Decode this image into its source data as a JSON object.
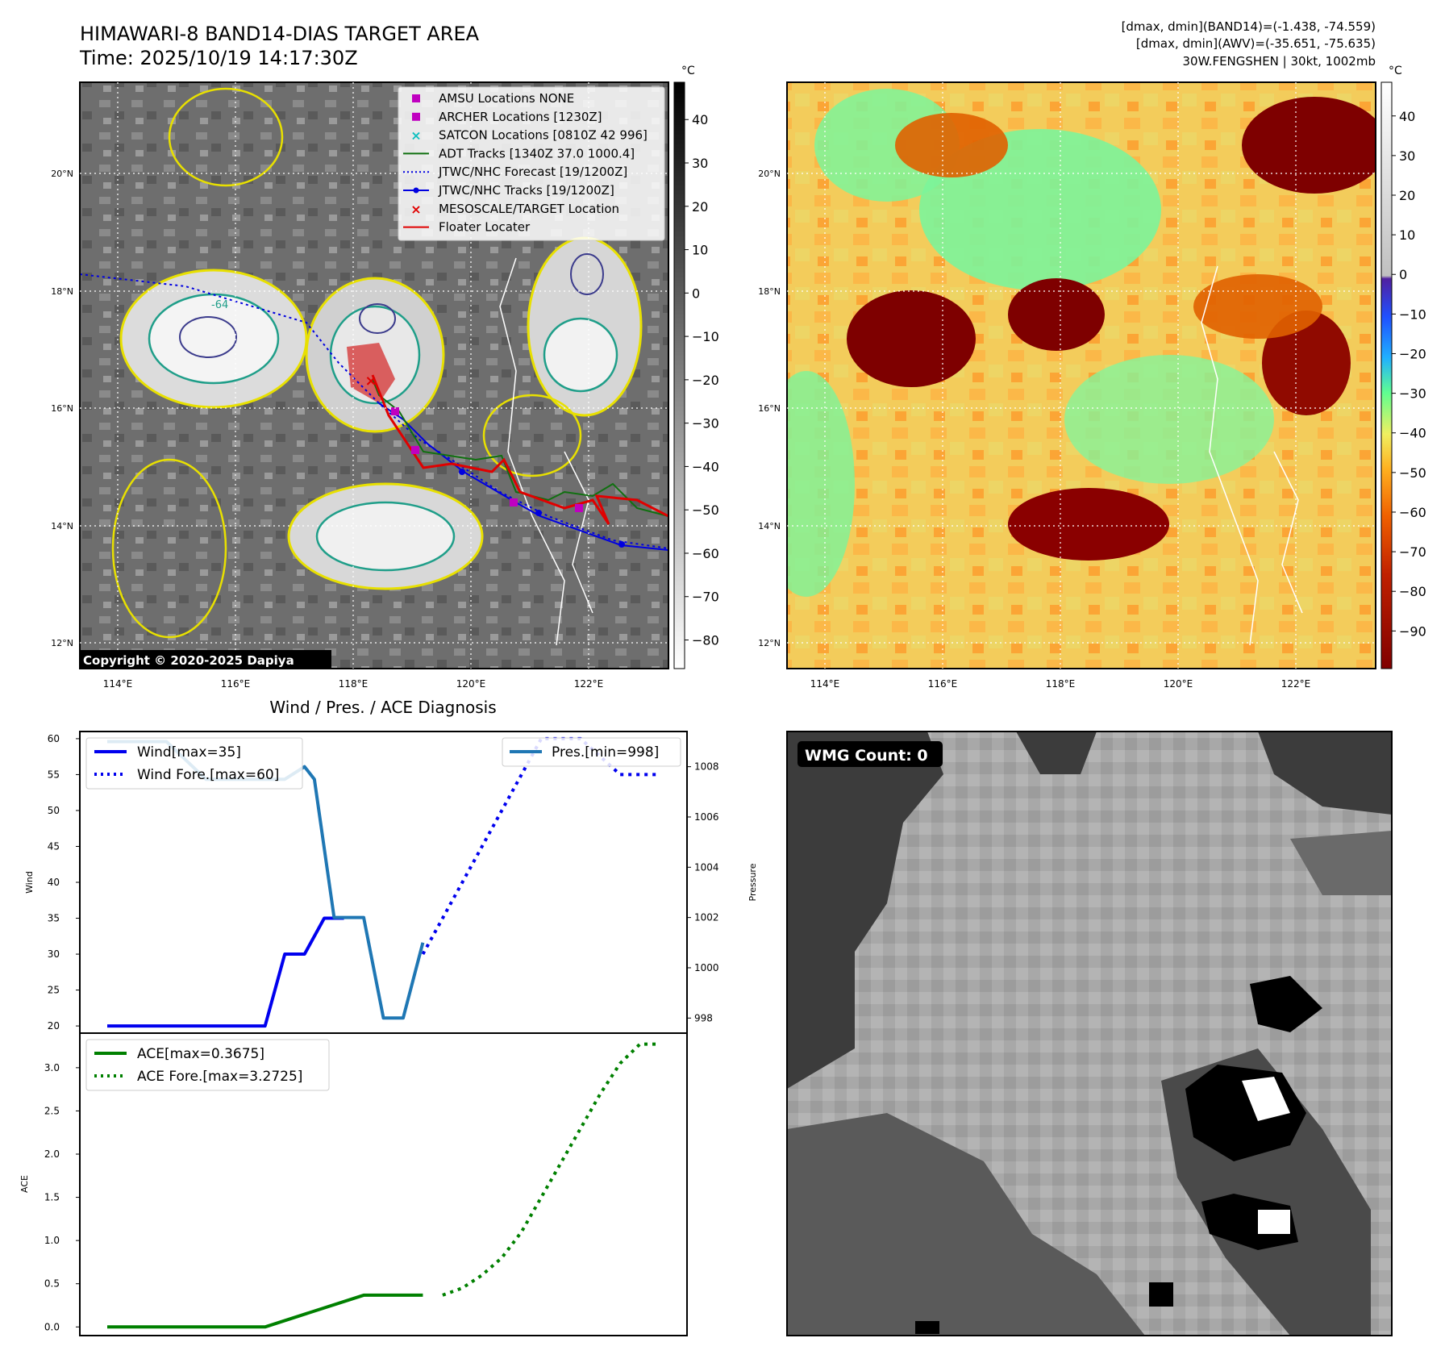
{
  "header": {
    "title_line1": "HIMAWARI-8 BAND14-DIAS TARGET AREA",
    "title_line2": "Time: 2025/10/19 14:17:30Z",
    "info_line1": "[dmax, dmin](BAND14)=(-1.438, -74.559)",
    "info_line2": "[dmax, dmin](AWV)=(-35.651, -75.635)",
    "info_line3": "30W.FENGSHEN | 30kt, 1002mb"
  },
  "map_panel": {
    "copyright": "Copyright © 2020-2025 Dapiya",
    "colorbar_unit": "°C",
    "colorbar_ticks": [
      40,
      30,
      20,
      10,
      0,
      -10,
      -20,
      -30,
      -40,
      -50,
      -60,
      -70,
      -80
    ],
    "lon_ticks": [
      "114°E",
      "116°E",
      "118°E",
      "120°E",
      "122°E"
    ],
    "lat_ticks": [
      "20°N",
      "18°N",
      "16°N",
      "14°N",
      "12°N"
    ],
    "contour_label": "-64",
    "legend": [
      {
        "label": "AMSU Locations NONE",
        "color": "#c000c0",
        "marker": "square"
      },
      {
        "label": "ARCHER Locations [1230Z]",
        "color": "#c000c0",
        "marker": "square"
      },
      {
        "label": "SATCON Locations [0810Z 42 996]",
        "color": "#10c0c0",
        "marker": "x"
      },
      {
        "label": "ADT Tracks [1340Z 37.0 1000.4]",
        "color": "#107010",
        "marker": "line"
      },
      {
        "label": "JTWC/NHC Forecast [19/1200Z]",
        "color": "#0000e0",
        "marker": "dotted"
      },
      {
        "label": "JTWC/NHC Tracks [19/1200Z]",
        "color": "#0000e0",
        "marker": "line-dot"
      },
      {
        "label": "MESOSCALE/TARGET Location",
        "color": "#e00000",
        "marker": "x"
      },
      {
        "label": "Floater Locater",
        "color": "#e00000",
        "marker": "line"
      }
    ]
  },
  "color_panel": {
    "colorbar_unit": "°C",
    "colorbar_ticks": [
      40,
      30,
      20,
      10,
      0,
      -10,
      -20,
      -30,
      -40,
      -50,
      -60,
      -70,
      -80,
      -90
    ],
    "lon_ticks": [
      "114°E",
      "116°E",
      "118°E",
      "120°E",
      "122°E"
    ],
    "lat_ticks": [
      "20°N",
      "18°N",
      "16°N",
      "14°N",
      "12°N"
    ]
  },
  "wmg_panel": {
    "label": "WMG Count: 0"
  },
  "chart_data": [
    {
      "type": "line",
      "title": "Wind / Pres. / ACE Diagnosis",
      "ylabel": "Wind",
      "y2label": "Pressure",
      "ylim": [
        19,
        61
      ],
      "y_ticks": [
        20,
        25,
        30,
        35,
        40,
        45,
        50,
        55,
        60
      ],
      "y2lim": [
        997.4,
        1009.4
      ],
      "y2_ticks": [
        998,
        1000,
        1002,
        1004,
        1006,
        1008
      ],
      "legend_left": [
        "Wind[max=35]",
        "Wind Fore.[max=60]"
      ],
      "legend_right": "Pres.[min=998]",
      "series": [
        {
          "name": "Wind[max=35]",
          "color": "#0000ee",
          "style": "solid",
          "x": [
            0,
            1,
            2,
            3,
            4,
            5,
            6,
            7,
            8,
            9,
            10,
            11,
            12
          ],
          "values": [
            20,
            20,
            20,
            20,
            20,
            20,
            20,
            20,
            20,
            30,
            30,
            35,
            35
          ]
        },
        {
          "name": "Wind Fore.[max=60]",
          "color": "#0000ee",
          "style": "dotted",
          "x": [
            16,
            22,
            24,
            26,
            28
          ],
          "values": [
            30,
            60,
            60,
            55,
            55
          ]
        },
        {
          "name": "Pres.[min=998]",
          "color": "#1f77b4",
          "style": "solid",
          "x": [
            0,
            3,
            5,
            9,
            10,
            10.5,
            11.5,
            13,
            14,
            15,
            16
          ],
          "values": [
            1009,
            1009,
            1007.5,
            1007.5,
            1008,
            1007.5,
            1002,
            1002,
            998,
            998,
            1001
          ]
        }
      ]
    },
    {
      "type": "line",
      "ylabel": "ACE",
      "ylim": [
        -0.1,
        3.4
      ],
      "y_ticks": [
        "0.0",
        "0.5",
        "1.0",
        "1.5",
        "2.0",
        "2.5",
        "3.0"
      ],
      "legend": [
        "ACE[max=0.3675]",
        "ACE Fore.[max=3.2725]"
      ],
      "series": [
        {
          "name": "ACE[max=0.3675]",
          "color": "#008000",
          "style": "solid",
          "x": [
            0,
            8,
            13,
            16
          ],
          "values": [
            0.0,
            0.0,
            0.3675,
            0.3675
          ]
        },
        {
          "name": "ACE Fore.[max=3.2725]",
          "color": "#008000",
          "style": "dotted",
          "x": [
            17,
            18,
            19,
            20,
            21,
            22,
            23,
            24,
            25,
            26,
            27,
            28
          ],
          "values": [
            0.3675,
            0.45,
            0.6,
            0.8,
            1.1,
            1.5,
            1.9,
            2.3,
            2.7,
            3.05,
            3.2725,
            3.2725
          ]
        }
      ]
    }
  ]
}
